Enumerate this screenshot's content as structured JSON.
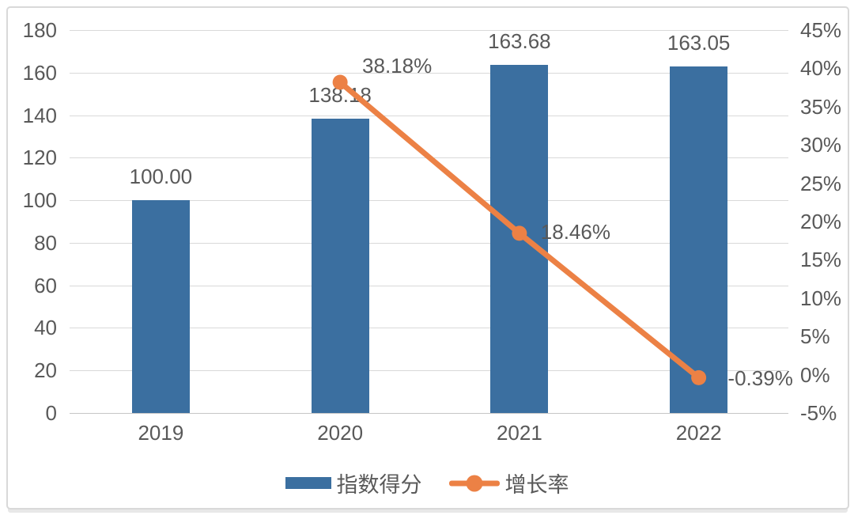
{
  "chart": {
    "colors": {
      "bar": "#3b6fa0",
      "line": "#ec8145",
      "text": "#595959",
      "grid": "#d9d9d9",
      "zero_line": "#c6c6c6",
      "border": "#d9d9d9",
      "background": "#ffffff"
    }
  },
  "chart_data": {
    "type": "bar",
    "subtype": "bar-line-combo",
    "categories": [
      "2019",
      "2020",
      "2021",
      "2022"
    ],
    "series": [
      {
        "name": "指数得分",
        "type": "bar",
        "axis": "left",
        "values": [
          100.0,
          138.18,
          163.68,
          163.05
        ],
        "labels": [
          "100.00",
          "138.18",
          "163.68",
          "163.05"
        ]
      },
      {
        "name": "增长率",
        "type": "line",
        "axis": "right",
        "values": [
          null,
          38.18,
          18.46,
          -0.39
        ],
        "labels": [
          "",
          "38.18%",
          "18.46%",
          "-0.39%"
        ]
      }
    ],
    "left_axis": {
      "min": 0,
      "max": 180,
      "step": 20,
      "ticks": [
        "180",
        "160",
        "140",
        "120",
        "100",
        "80",
        "60",
        "40",
        "20",
        "0"
      ]
    },
    "right_axis": {
      "min": -5,
      "max": 45,
      "step": 5,
      "ticks": [
        "45%",
        "40%",
        "35%",
        "30%",
        "25%",
        "20%",
        "15%",
        "10%",
        "5%",
        "0%",
        "-5%"
      ]
    },
    "legend": [
      {
        "label": "指数得分",
        "marker": "bar-swatch"
      },
      {
        "label": "增长率",
        "marker": "line-dot-swatch"
      }
    ],
    "layout_hints": {
      "grid": "horizontal-only",
      "legend_position": "bottom-center",
      "bar_labels": "outside-end",
      "line_labels": "right-of-marker"
    }
  }
}
